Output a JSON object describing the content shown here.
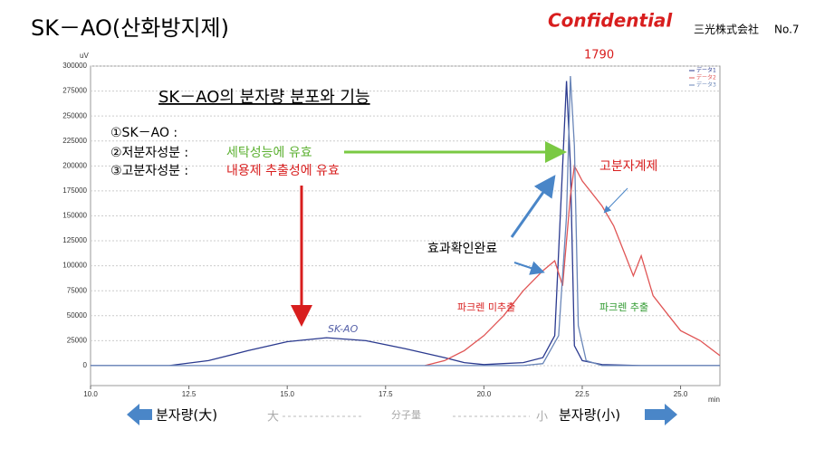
{
  "slide": {
    "title": "SK－AO(산화방지제)",
    "confidential": "Confidential",
    "company": "三光株式会社",
    "page": "No.7",
    "heading": "SK－AO의 분자량 분포와 기능",
    "items": [
      {
        "label": "①SK－AO :",
        "text": ""
      },
      {
        "label": "②저분자성분 :",
        "text": "세탁성능에 유효"
      },
      {
        "label": "③고분자성분 :",
        "text": "내용제 추출성에 유효"
      }
    ],
    "bottom_left": "분자량(大)",
    "bottom_right": "분자량(小)",
    "note_big": "大",
    "note_mid": "分子量",
    "note_small": "小"
  },
  "chart_data": {
    "type": "line",
    "y_label": "uV",
    "x_label": "min",
    "xlim": [
      10,
      26
    ],
    "ylim": [
      -20000,
      300000
    ],
    "xticks": [
      {
        "value": 10,
        "label": "10.0"
      },
      {
        "value": 12.5,
        "label": "12.5"
      },
      {
        "value": 15,
        "label": "15.0"
      },
      {
        "value": 17.5,
        "label": "17.5"
      },
      {
        "value": 20,
        "label": "20.0"
      },
      {
        "value": 22.5,
        "label": "22.5"
      },
      {
        "value": 25,
        "label": "25.0"
      }
    ],
    "yticks": [
      0,
      {
        "value": 25000,
        "label": "25000"
      },
      {
        "value": 50000,
        "label": "50000"
      },
      {
        "value": 75000,
        "label": "75000"
      },
      {
        "value": 100000,
        "label": "100000"
      },
      {
        "value": 125000,
        "label": "125000"
      },
      {
        "value": 150000,
        "label": "150000"
      },
      {
        "value": 175000,
        "label": "175000"
      },
      {
        "value": 200000,
        "label": "200000"
      },
      {
        "value": 225000,
        "label": "225000"
      },
      {
        "value": 250000,
        "label": "250000"
      },
      {
        "value": 275000,
        "label": "275000"
      },
      {
        "value": 300000,
        "label": "300000"
      }
    ],
    "grid": true,
    "series": [
      {
        "name": "データ1",
        "color": "#2b3a8f",
        "x": [
          10,
          12,
          13,
          14,
          15,
          16,
          17,
          18,
          19,
          19.5,
          20,
          20.5,
          21,
          21.5,
          21.8,
          22.0,
          22.1,
          22.2,
          22.3,
          22.5,
          23,
          24,
          25,
          26
        ],
        "values": [
          0,
          0,
          5000,
          15000,
          24000,
          28000,
          25000,
          17000,
          8000,
          3000,
          1000,
          2000,
          3000,
          8000,
          30000,
          200000,
          285000,
          200000,
          20000,
          5000,
          1000,
          0,
          0,
          0
        ]
      },
      {
        "name": "データ2",
        "color": "#e05555",
        "x": [
          18.5,
          19,
          19.5,
          20,
          20.5,
          21,
          21.5,
          21.8,
          22.0,
          22.2,
          22.3,
          22.5,
          23,
          23.3,
          23.6,
          23.8,
          24,
          24.3,
          24.7,
          25,
          25.5,
          26
        ],
        "values": [
          0,
          5000,
          15000,
          30000,
          50000,
          75000,
          95000,
          105000,
          80000,
          170000,
          200000,
          185000,
          160000,
          140000,
          110000,
          90000,
          110000,
          70000,
          50000,
          35000,
          25000,
          10000
        ]
      },
      {
        "name": "データ3",
        "color": "#6a86b8",
        "x": [
          10,
          19,
          20,
          21,
          21.5,
          21.9,
          22.1,
          22.2,
          22.3,
          22.4,
          22.6,
          23,
          26
        ],
        "values": [
          0,
          0,
          0,
          0,
          2000,
          30000,
          150000,
          290000,
          220000,
          40000,
          5000,
          0,
          0
        ]
      }
    ],
    "annotations": [
      "1790",
      "SK-AO",
      "고분자계제",
      "효과확인완료",
      "파크렌 미추출",
      "파크렌 추출"
    ]
  }
}
